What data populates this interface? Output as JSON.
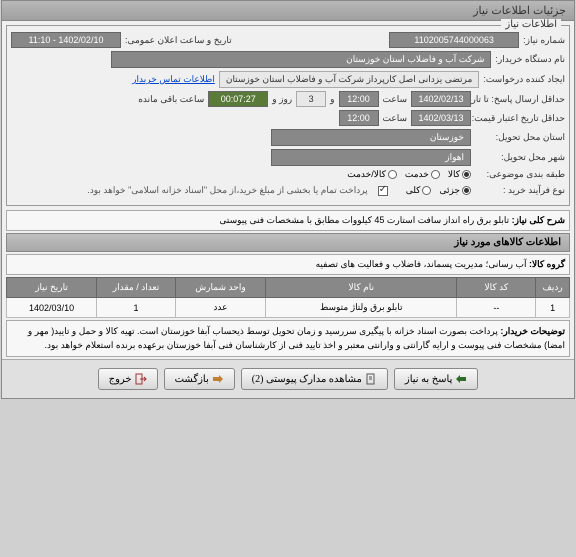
{
  "window": {
    "title": "جزئیات اطلاعات نیاز"
  },
  "fieldsets": {
    "info": {
      "legend": "اطلاعات نیاز",
      "need_no_label": "شماره نیاز:",
      "need_no": "1102005744000063",
      "public_date_label": "تاریخ و ساعت اعلان عمومی:",
      "public_date": "1402/02/10 - 11:10",
      "buyer_label": "نام دستگاه خریدار:",
      "buyer": "شرکت آب و فاضلاب استان خوزستان",
      "creator_label": "ایجاد کننده درخواست:",
      "creator": "مرتضی یزدانی اصل کارپرداز شرکت آب و فاضلاب استان خوزستان",
      "contact_link": "اطلاعات تماس خریدار",
      "deadline_label": "حداقل ارسال پاسخ: تا تاریخ:",
      "deadline_date": "1402/02/13",
      "time_label": "ساعت",
      "deadline_time": "12:00",
      "and_label": "و",
      "days": "3",
      "days_label": "روز و",
      "timer": "00:07:27",
      "remain_label": "ساعت باقی مانده",
      "validity_label": "حداقل تاریخ اعتبار قیمت: تا تاریخ:",
      "validity_date": "1402/03/13",
      "validity_time": "12:00",
      "province_label": "استان محل تحویل:",
      "province": "خوزستان",
      "city_label": "شهر محل تحویل:",
      "city": "اهواز",
      "category_label": "طبقه بندی موضوعی:",
      "cat_goods": "کالا",
      "cat_service": "خدمت",
      "cat_both": "کالا/خدمت",
      "process_label": "نوع فرآیند خرید :",
      "proc_partial": "جزئی",
      "proc_total": "کلی",
      "payment_note": "پرداخت تمام یا بخشی از مبلغ خرید،از محل \"اسناد خزانه اسلامی\" خواهد بود."
    }
  },
  "overview": {
    "label": "شرح کلی نیاز:",
    "text": "تابلو برق راه انداز سافت استارت 45 کیلووات مطابق با مشخصات فنی پیوستی"
  },
  "goods_section": {
    "header": "اطلاعات کالاهای مورد نیاز",
    "group_label": "گروه کالا:",
    "group_value": "آب رسانی؛ مدیریت پسماند، فاضلاب و فعالیت های تصفیه"
  },
  "table": {
    "columns": [
      "ردیف",
      "کد کالا",
      "نام کالا",
      "واحد شمارش",
      "تعداد / مقدار",
      "تاریخ نیاز"
    ],
    "rows": [
      [
        "1",
        "--",
        "تابلو برق ولتاژ متوسط",
        "عدد",
        "1",
        "1402/03/10"
      ]
    ],
    "col_widths": [
      "6%",
      "14%",
      "34%",
      "16%",
      "14%",
      "16%"
    ]
  },
  "buyer_notes": {
    "label": "توضیحات خریدار:",
    "text": "پرداخت بصورت اسناد خزانه با پیگیری سررسید و زمان تحویل توسط ذیحساب آبفا خوزستان است. تهیه کالا و حمل و تایید( مهر و امضا) مشخصات فنی پیوست و ارایه گارانتی و وارانتی معتبر و اخذ تایید فنی از کارشناسان فنی آبفا خوزستان برعهده برنده استعلام خواهد بود."
  },
  "buttons": {
    "reply": "پاسخ به نیاز",
    "attachments": "مشاهده مدارک پیوستی (2)",
    "back": "بازگشت",
    "exit": "خروج"
  },
  "colors": {
    "header_bg": "#a8a8a8",
    "value_bg": "#888888",
    "timer_bg": "#5a7a3a",
    "border": "#999999"
  }
}
